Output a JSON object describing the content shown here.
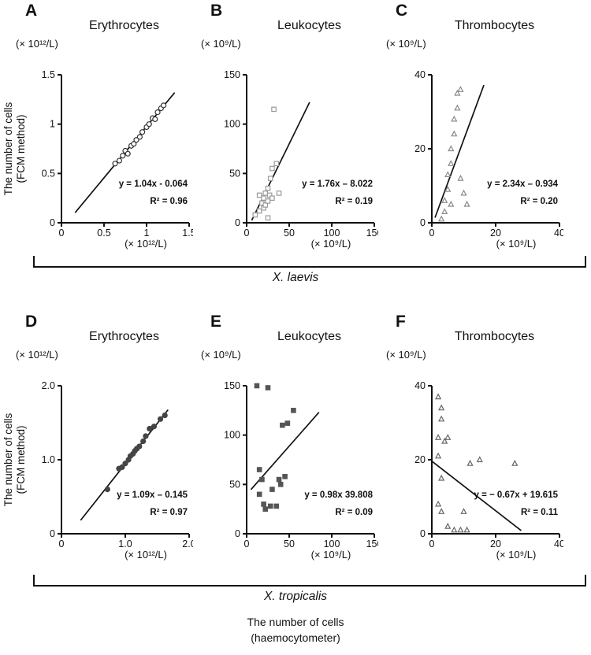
{
  "figure": {
    "ylabel_line1": "The number of cells",
    "ylabel_line2": "(FCM method)",
    "bottom_xlabel_line1": "The number of cells",
    "bottom_xlabel_line2": "(haemocytometer)",
    "row1_species": "X. laevis",
    "row2_species": "X. tropicalis"
  },
  "chart_data": [
    {
      "panel_letter": "A",
      "title": "Erythrocytes",
      "species": "X. laevis",
      "type": "scatter",
      "marker": "circle-open",
      "marker_color": "#333333",
      "unit_y": "(× 10¹²/L)",
      "unit_x": "(× 10¹²/L)",
      "ylabel": "The number of cells (FCM method)",
      "xlabel": "The number of cells (haemocytometer)",
      "xlim": [
        0,
        1.5
      ],
      "ylim": [
        0,
        1.5
      ],
      "xticks": [
        0,
        0.5,
        1,
        1.5
      ],
      "xtick_labels": [
        "0",
        "0.5",
        "1",
        "1.5"
      ],
      "yticks": [
        0,
        0.5,
        1,
        1.5
      ],
      "ytick_labels": [
        "0",
        "0.5",
        "1",
        "1.5"
      ],
      "equation": "y = 1.04x - 0.064",
      "r_squared": "R² = 0.96",
      "fit": {
        "slope": 1.04,
        "intercept": -0.064,
        "x_start": 0.16,
        "x_end": 1.33
      },
      "points": [
        [
          0.63,
          0.6
        ],
        [
          0.68,
          0.63
        ],
        [
          0.72,
          0.68
        ],
        [
          0.75,
          0.73
        ],
        [
          0.78,
          0.7
        ],
        [
          0.82,
          0.78
        ],
        [
          0.85,
          0.8
        ],
        [
          0.88,
          0.84
        ],
        [
          0.92,
          0.87
        ],
        [
          0.95,
          0.92
        ],
        [
          1.0,
          0.97
        ],
        [
          1.03,
          1.0
        ],
        [
          1.07,
          1.06
        ],
        [
          1.1,
          1.05
        ],
        [
          1.13,
          1.12
        ],
        [
          1.17,
          1.16
        ],
        [
          1.2,
          1.19
        ]
      ]
    },
    {
      "panel_letter": "B",
      "title": "Leukocytes",
      "species": "X. laevis",
      "type": "scatter",
      "marker": "square-open",
      "marker_color": "#999999",
      "unit_y": "(× 10⁹/L)",
      "unit_x": "(× 10⁹/L)",
      "ylabel": "The number of cells (FCM method)",
      "xlabel": "The number of cells (haemocytometer)",
      "xlim": [
        0,
        150
      ],
      "ylim": [
        0,
        150
      ],
      "xticks": [
        0,
        50,
        100,
        150
      ],
      "xtick_labels": [
        "0",
        "50",
        "100",
        "150"
      ],
      "yticks": [
        0,
        50,
        100,
        150
      ],
      "ytick_labels": [
        "0",
        "50",
        "100",
        "150"
      ],
      "equation": "y = 1.76x – 8.022",
      "r_squared": "R² = 0.19",
      "fit": {
        "slope": 1.76,
        "intercept": -8.022,
        "x_start": 6,
        "x_end": 74
      },
      "points": [
        [
          10,
          8
        ],
        [
          15,
          12
        ],
        [
          15,
          28
        ],
        [
          18,
          20
        ],
        [
          20,
          15
        ],
        [
          20,
          25
        ],
        [
          22,
          18
        ],
        [
          22,
          30
        ],
        [
          25,
          5
        ],
        [
          25,
          22
        ],
        [
          25,
          35
        ],
        [
          27,
          28
        ],
        [
          28,
          45
        ],
        [
          30,
          25
        ],
        [
          30,
          55
        ],
        [
          32,
          115
        ],
        [
          35,
          60
        ],
        [
          38,
          30
        ]
      ]
    },
    {
      "panel_letter": "C",
      "title": "Thrombocytes",
      "species": "X. laevis",
      "type": "scatter",
      "marker": "triangle-open",
      "marker_color": "#888888",
      "unit_y": "(× 10⁹/L)",
      "unit_x": "(× 10⁹/L)",
      "ylabel": "The number of cells (FCM method)",
      "xlabel": "The number of cells (haemocytometer)",
      "xlim": [
        0,
        40
      ],
      "ylim": [
        0,
        40
      ],
      "xticks": [
        0,
        20,
        40
      ],
      "xtick_labels": [
        "0",
        "20",
        "40"
      ],
      "yticks": [
        0,
        20,
        40
      ],
      "ytick_labels": [
        "0",
        "20",
        "40"
      ],
      "equation": "y = 2.34x – 0.934",
      "r_squared": "R² = 0.20",
      "fit": {
        "slope": 2.34,
        "intercept": -0.934,
        "x_start": 1.0,
        "x_end": 16.3
      },
      "points": [
        [
          3,
          1
        ],
        [
          4,
          3
        ],
        [
          4,
          6
        ],
        [
          5,
          9
        ],
        [
          5,
          13
        ],
        [
          6,
          5
        ],
        [
          6,
          16
        ],
        [
          6,
          20
        ],
        [
          7,
          24
        ],
        [
          7,
          28
        ],
        [
          8,
          31
        ],
        [
          8,
          35
        ],
        [
          9,
          12
        ],
        [
          9,
          36
        ],
        [
          10,
          8
        ],
        [
          11,
          5
        ]
      ]
    },
    {
      "panel_letter": "D",
      "title": "Erythrocytes",
      "species": "X. tropicalis",
      "type": "scatter",
      "marker": "circle-filled",
      "marker_color": "#444444",
      "unit_y": "(× 10¹²/L)",
      "unit_x": "(× 10¹²/L)",
      "ylabel": "The number of cells (FCM method)",
      "xlabel": "The number of cells (haemocytometer)",
      "xlim": [
        0,
        2.0
      ],
      "ylim": [
        0,
        2.0
      ],
      "xticks": [
        0,
        1.0,
        2.0
      ],
      "xtick_labels": [
        "0",
        "1.0",
        "2.0"
      ],
      "yticks": [
        0,
        1.0,
        2.0
      ],
      "ytick_labels": [
        "0",
        "1.0",
        "2.0"
      ],
      "equation": "y = 1.09x – 0.145",
      "r_squared": "R² = 0.97",
      "fit": {
        "slope": 1.09,
        "intercept": -0.145,
        "x_start": 0.3,
        "x_end": 1.67
      },
      "points": [
        [
          0.72,
          0.6
        ],
        [
          0.9,
          0.88
        ],
        [
          0.95,
          0.9
        ],
        [
          1.0,
          0.95
        ],
        [
          1.05,
          1.0
        ],
        [
          1.08,
          1.05
        ],
        [
          1.12,
          1.08
        ],
        [
          1.15,
          1.12
        ],
        [
          1.18,
          1.15
        ],
        [
          1.22,
          1.18
        ],
        [
          1.28,
          1.25
        ],
        [
          1.32,
          1.32
        ],
        [
          1.38,
          1.42
        ],
        [
          1.45,
          1.45
        ],
        [
          1.55,
          1.55
        ],
        [
          1.62,
          1.6
        ]
      ]
    },
    {
      "panel_letter": "E",
      "title": "Leukocytes",
      "species": "X. tropicalis",
      "type": "scatter",
      "marker": "square-filled",
      "marker_color": "#555555",
      "unit_y": "(× 10⁹/L)",
      "unit_x": "(× 10⁹/L)",
      "ylabel": "The number of cells (FCM method)",
      "xlabel": "The number of cells (haemocytometer)",
      "xlim": [
        0,
        150
      ],
      "ylim": [
        0,
        150
      ],
      "xticks": [
        0,
        50,
        100,
        150
      ],
      "xtick_labels": [
        "0",
        "50",
        "100",
        "150"
      ],
      "yticks": [
        0,
        50,
        100,
        150
      ],
      "ytick_labels": [
        "0",
        "50",
        "100",
        "150"
      ],
      "equation": "y = 0.98x 39.808",
      "r_squared": "R² = 0.09",
      "fit": {
        "slope": 0.98,
        "intercept": 39.808,
        "x_start": 5,
        "x_end": 85
      },
      "points": [
        [
          12,
          150
        ],
        [
          25,
          148
        ],
        [
          15,
          65
        ],
        [
          18,
          55
        ],
        [
          15,
          40
        ],
        [
          20,
          30
        ],
        [
          22,
          25
        ],
        [
          28,
          28
        ],
        [
          30,
          45
        ],
        [
          35,
          28
        ],
        [
          38,
          55
        ],
        [
          40,
          50
        ],
        [
          42,
          110
        ],
        [
          45,
          58
        ],
        [
          48,
          112
        ],
        [
          55,
          125
        ]
      ]
    },
    {
      "panel_letter": "F",
      "title": "Thrombocytes",
      "species": "X. tropicalis",
      "type": "scatter",
      "marker": "triangle-open",
      "marker_color": "#666666",
      "unit_y": "(× 10⁹/L)",
      "unit_x": "(× 10⁹/L)",
      "ylabel": "The number of cells (FCM method)",
      "xlabel": "The number of cells (haemocytometer)",
      "xlim": [
        0,
        40
      ],
      "ylim": [
        0,
        40
      ],
      "xticks": [
        0,
        20,
        40
      ],
      "xtick_labels": [
        "0",
        "20",
        "40"
      ],
      "yticks": [
        0,
        20,
        40
      ],
      "ytick_labels": [
        "0",
        "20",
        "40"
      ],
      "equation": "y = − 0.67x + 19.615",
      "r_squared": "R² = 0.11",
      "fit": {
        "slope": -0.67,
        "intercept": 19.615,
        "x_start": 0,
        "x_end": 28
      },
      "points": [
        [
          2,
          37
        ],
        [
          3,
          34
        ],
        [
          3,
          31
        ],
        [
          2,
          26
        ],
        [
          4,
          25
        ],
        [
          5,
          26
        ],
        [
          2,
          21
        ],
        [
          3,
          15
        ],
        [
          2,
          8
        ],
        [
          3,
          6
        ],
        [
          5,
          2
        ],
        [
          7,
          1
        ],
        [
          9,
          1
        ],
        [
          11,
          1
        ],
        [
          10,
          6
        ],
        [
          12,
          19
        ],
        [
          15,
          20
        ],
        [
          26,
          19
        ]
      ]
    }
  ]
}
